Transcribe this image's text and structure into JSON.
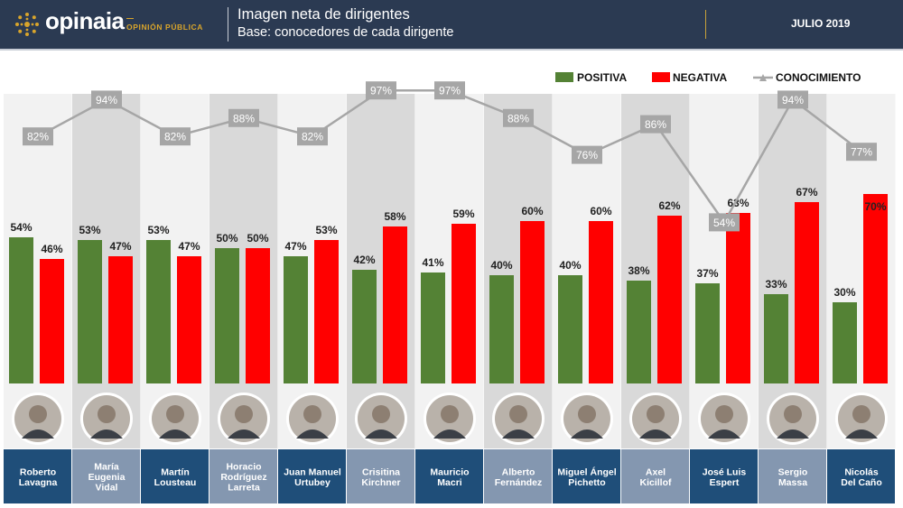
{
  "header": {
    "brand": "opinaia",
    "brand_sub": "OPINIÓN PÚBLICA",
    "title": "Imagen neta de dirigentes",
    "subtitle": "Base: conocedores de cada dirigente",
    "date": "JULIO 2019"
  },
  "colors": {
    "positive": "#548235",
    "negative": "#ff0000",
    "knowledge": "#a6a6a6",
    "header_bg": "#2b3a52",
    "name_bg_dark": "#1f4e79",
    "name_bg_light": "#8497b0"
  },
  "chart_data": {
    "type": "bar",
    "title": "Imagen neta de dirigentes",
    "subtitle": "Base: conocedores de cada dirigente",
    "unit": "%",
    "ylim": [
      0,
      100
    ],
    "legend": [
      "POSITIVA",
      "NEGATIVA",
      "CONOCIMIENTO"
    ],
    "categories": [
      [
        "Roberto",
        "Lavagna"
      ],
      [
        "María",
        "Eugenia",
        "Vidal"
      ],
      [
        "Martín",
        "Lousteau"
      ],
      [
        "Horacio",
        "Rodríguez",
        "Larreta"
      ],
      [
        "Juan Manuel",
        "Urtubey"
      ],
      [
        "Crisitina",
        "Kirchner"
      ],
      [
        "Mauricio",
        "Macri"
      ],
      [
        "Alberto",
        "Fernández"
      ],
      [
        "Miguel Ángel",
        "Pichetto"
      ],
      [
        "Axel",
        "Kicillof"
      ],
      [
        "José Luis",
        "Espert"
      ],
      [
        "Sergio",
        "Massa"
      ],
      [
        "Nicolás",
        "Del Caño"
      ]
    ],
    "series": [
      {
        "name": "POSITIVA",
        "type": "bar",
        "values": [
          54,
          53,
          53,
          50,
          47,
          42,
          41,
          40,
          40,
          38,
          37,
          33,
          30
        ]
      },
      {
        "name": "NEGATIVA",
        "type": "bar",
        "values": [
          46,
          47,
          47,
          50,
          53,
          58,
          59,
          60,
          60,
          62,
          63,
          67,
          70
        ]
      },
      {
        "name": "CONOCIMIENTO",
        "type": "line",
        "values": [
          82,
          94,
          82,
          88,
          82,
          97,
          97,
          88,
          76,
          86,
          54,
          94,
          77
        ]
      }
    ]
  }
}
